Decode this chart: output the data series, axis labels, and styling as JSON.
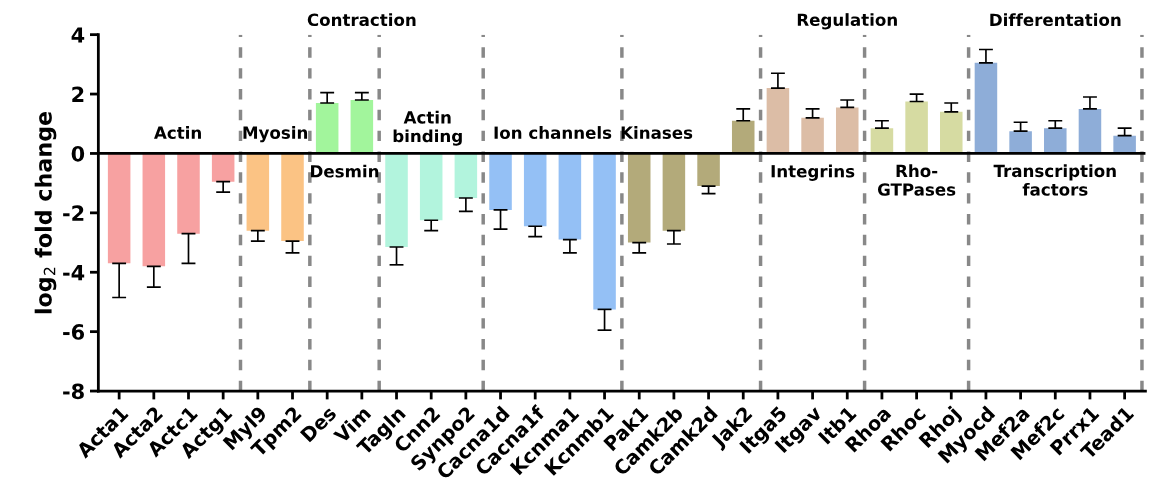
{
  "chart_data": {
    "type": "bar",
    "ylabel": "log$_{2}$ fold change",
    "categories": [
      "Acta1",
      "Acta2",
      "Actc1",
      "Actg1",
      "Myl9",
      "Tpm2",
      "Des",
      "Vim",
      "Tagln",
      "Cnn2",
      "Synpo2",
      "Cacna1d",
      "Cacna1f",
      "Kcnma1",
      "Kcnmb1",
      "Pak1",
      "Camk2b",
      "Camk2d",
      "Jak2",
      "Itga5",
      "Itgav",
      "Itb1",
      "Rhoa",
      "Rhoc",
      "Rhoj",
      "Myocd",
      "Mef2a",
      "Mef2c",
      "Prrx1",
      "Tead1"
    ],
    "values": [
      -3.7,
      -3.8,
      -2.7,
      -0.95,
      -2.6,
      -2.95,
      1.7,
      1.8,
      -3.15,
      -2.25,
      -1.5,
      -1.9,
      -2.45,
      -2.9,
      -5.25,
      -3.0,
      -2.6,
      -1.1,
      1.1,
      2.2,
      1.2,
      1.55,
      0.85,
      1.75,
      1.4,
      3.05,
      0.75,
      0.85,
      1.5,
      0.6
    ],
    "errors": [
      [
        -4.85,
        -3.7
      ],
      [
        -4.5,
        -3.8
      ],
      [
        -3.7,
        -2.7
      ],
      [
        -1.3,
        -0.95
      ],
      [
        -2.95,
        -2.6
      ],
      [
        -3.35,
        -2.95
      ],
      [
        1.7,
        2.05
      ],
      [
        1.8,
        2.05
      ],
      [
        -3.75,
        -3.15
      ],
      [
        -2.6,
        -2.25
      ],
      [
        -1.95,
        -1.5
      ],
      [
        -2.55,
        -1.9
      ],
      [
        -2.8,
        -2.45
      ],
      [
        -3.35,
        -2.9
      ],
      [
        -5.95,
        -5.25
      ],
      [
        -3.35,
        -3.0
      ],
      [
        -3.05,
        -2.6
      ],
      [
        -1.35,
        -1.1
      ],
      [
        1.1,
        1.5
      ],
      [
        2.2,
        2.7
      ],
      [
        1.2,
        1.5
      ],
      [
        1.55,
        1.8
      ],
      [
        0.85,
        1.1
      ],
      [
        1.75,
        2.0
      ],
      [
        1.4,
        1.7
      ],
      [
        3.05,
        3.5
      ],
      [
        0.75,
        1.05
      ],
      [
        0.85,
        1.1
      ],
      [
        1.5,
        1.9
      ],
      [
        0.6,
        0.85
      ]
    ],
    "colors": [
      "#f7a1a1",
      "#f7a1a1",
      "#f7a1a1",
      "#f7a1a1",
      "#fbc384",
      "#fbc384",
      "#a2f59c",
      "#a2f59c",
      "#b2f4dd",
      "#b2f4dd",
      "#b2f4dd",
      "#94c0f5",
      "#94c0f5",
      "#94c0f5",
      "#94c0f5",
      "#b3aa7a",
      "#b3aa7a",
      "#b3aa7a",
      "#b3aa7a",
      "#dcbda6",
      "#dcbda6",
      "#dcbda6",
      "#d6dba2",
      "#d6dba2",
      "#d6dba2",
      "#8eadd8",
      "#8eadd8",
      "#8eadd8",
      "#8eadd8",
      "#8eadd8"
    ],
    "ylim": [
      -8,
      4
    ],
    "yticks": [
      -8,
      -6,
      -4,
      -2,
      0,
      2,
      4
    ],
    "annotations": [
      "Contraction",
      "Regulation",
      "Differentation",
      "Actin",
      "Myosin",
      "Desmin",
      "Actin\nbinding",
      "Ion channels",
      "Kinases",
      "Integrins",
      "Rho-\nGTPases",
      "Transcription\nfactors"
    ]
  }
}
